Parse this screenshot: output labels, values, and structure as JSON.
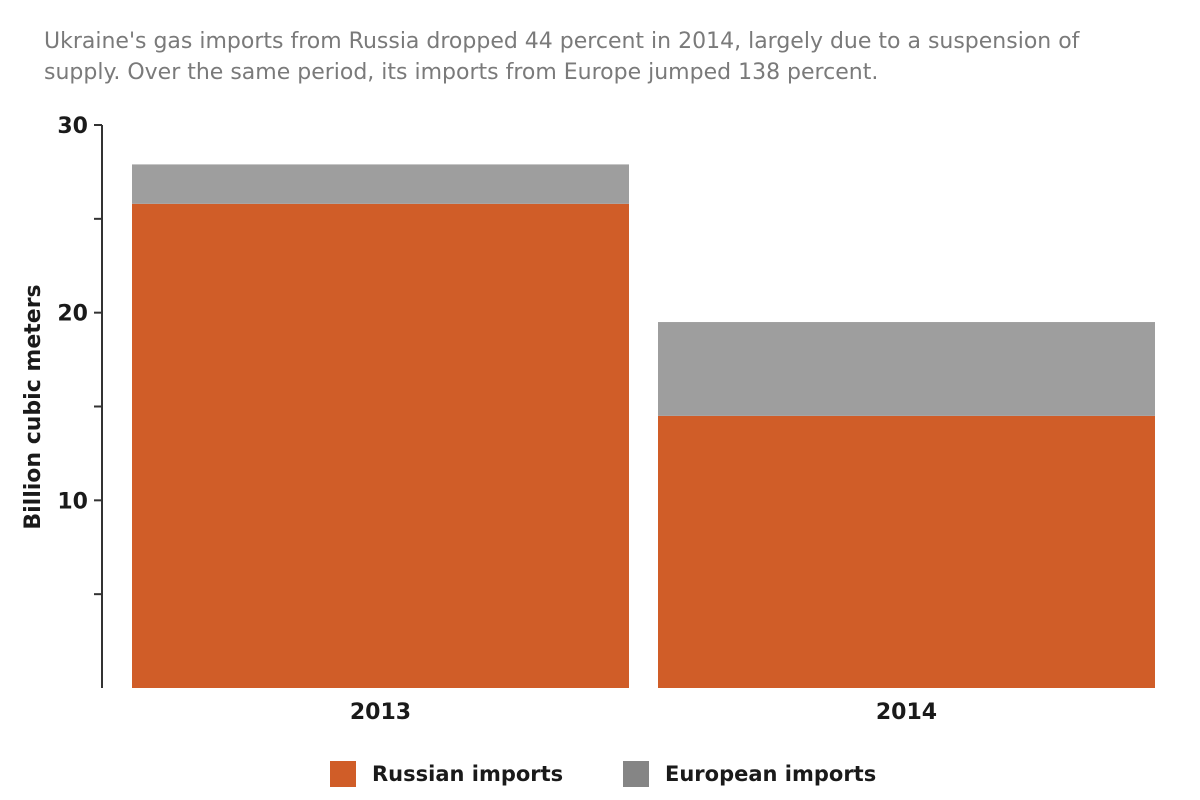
{
  "colors": {
    "russian": "#d05d28",
    "european": "#9e9e9e",
    "european_legend": "#858585",
    "axis": "#333333",
    "subtitle": "#7a7a7a"
  },
  "subtitle": {
    "line1": "Ukraine's gas imports from Russia dropped 44 percent in 2014, largely due to a suspension of",
    "line2": "supply. Over the same period, its imports from Europe jumped 138 percent."
  },
  "legend": {
    "russian_label": "Russian imports",
    "european_label": "European imports"
  },
  "chart_data": {
    "type": "bar",
    "stacked": true,
    "categories": [
      "2013",
      "2014"
    ],
    "series": [
      {
        "name": "Russian imports",
        "values": [
          25.8,
          14.5
        ],
        "color": "#d05d28"
      },
      {
        "name": "European imports",
        "values": [
          2.1,
          5.0
        ],
        "color": "#9e9e9e"
      }
    ],
    "ylabel": "Billion cubic meters",
    "xlabel": "",
    "ylim": [
      0,
      30
    ],
    "yticks_labeled": [
      10,
      20,
      30
    ],
    "yticks_minor": [
      5,
      15,
      25
    ],
    "grid": false,
    "legend_position": "bottom-center"
  }
}
